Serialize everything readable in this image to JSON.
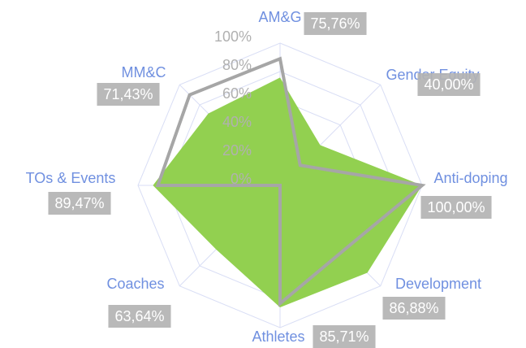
{
  "chart_data": {
    "type": "radar",
    "categories": [
      "AM&G",
      "Gender Equity",
      "Anti-doping",
      "Development",
      "Athletes",
      "Coaches",
      "TOs & Events",
      "MM&C"
    ],
    "series": [
      {
        "color": "#92d050",
        "fill": true,
        "values": [
          75.76,
          40.0,
          100.0,
          86.88,
          85.71,
          63.64,
          89.47,
          71.43
        ],
        "value_labels": [
          "75,76%",
          "40,00%",
          "100,00%",
          "86,88%",
          "85,71%",
          "63,64%",
          "89,47%",
          "71,43%"
        ]
      },
      {
        "color": "#a6a6a6",
        "fill": false,
        "values": [
          89,
          20,
          100,
          64,
          83,
          0,
          86,
          90
        ]
      }
    ],
    "ylim": [
      0,
      100
    ],
    "yticks": [
      {
        "value": 0,
        "label": "0%"
      },
      {
        "value": 20,
        "label": "20%"
      },
      {
        "value": 40,
        "label": "40%"
      },
      {
        "value": 60,
        "label": "60%"
      },
      {
        "value": 80,
        "label": "80%"
      },
      {
        "value": 100,
        "label": "100%"
      }
    ],
    "grid": true
  }
}
